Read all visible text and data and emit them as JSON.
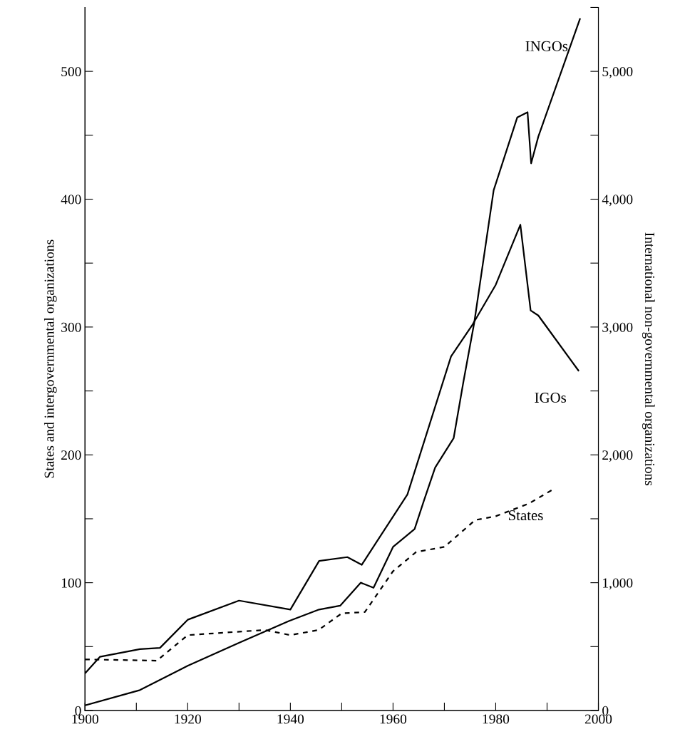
{
  "chart_data": {
    "type": "line",
    "ylabel": "States and intergovernmental organizations",
    "y2label": "International non-governmental organizations",
    "xlim": [
      1900,
      2000
    ],
    "xticks": [
      1900,
      {
        "value": 1910,
        "label": null
      },
      1920,
      {
        "value": 1930,
        "label": null
      },
      1940,
      {
        "value": 1950,
        "label": null
      },
      1960,
      {
        "value": 1970,
        "label": null
      },
      1980,
      {
        "value": 1990,
        "label": null
      },
      2000
    ],
    "ylim": [
      0,
      550
    ],
    "yticks": [
      0,
      {
        "value": 50,
        "label": null
      },
      100,
      {
        "value": 150,
        "label": null
      },
      200,
      {
        "value": 250,
        "label": null
      },
      300,
      {
        "value": 350,
        "label": null
      },
      400,
      {
        "value": 450,
        "label": null
      },
      500
    ],
    "y2lim": [
      0,
      5500
    ],
    "y2ticks": [
      0,
      {
        "value": 500,
        "label": null
      },
      {
        "value": 1000,
        "label": "1,000"
      },
      {
        "value": 1500,
        "label": null
      },
      {
        "value": 2000,
        "label": "2,000"
      },
      {
        "value": 2500,
        "label": null
      },
      {
        "value": 3000,
        "label": "3,000"
      },
      {
        "value": 3500,
        "label": null
      },
      {
        "value": 4000,
        "label": "4,000"
      },
      {
        "value": 4500,
        "label": null
      },
      {
        "value": 5000,
        "label": "5,000"
      },
      {
        "value": 5500,
        "label": null
      }
    ],
    "grid": false,
    "legend": false,
    "series": [
      {
        "name": "INGOs",
        "color": "#000000",
        "axis": "y2",
        "line_style": "solid",
        "x": [
          1900,
          1910.7,
          1920,
          1930,
          1939.7,
          1945.6,
          1949.7,
          1953.7,
          1956.2,
          1960,
          1964.2,
          1966,
          1968.2,
          1971.8,
          1973.7,
          1975.8,
          1979.6,
          1984.2,
          1986.2,
          1986.9,
          1988.3,
          1996.4
        ],
        "values": [
          40,
          160,
          350,
          530,
          700,
          790,
          820,
          1000,
          960,
          1280,
          1420,
          1640,
          1900,
          2130,
          2570,
          3030,
          4070,
          4640,
          4680,
          4280,
          4490,
          5410
        ]
      },
      {
        "name": "IGOs",
        "color": "#000000",
        "line_style": "solid",
        "x": [
          1900,
          1902.9,
          1910.7,
          1914.6,
          1920,
          1930,
          1940,
          1945.6,
          1951.1,
          1953.9,
          1962.8,
          1971.3,
          1975.5,
          1980,
          1984.8,
          1986.8,
          1988.3,
          1996.1
        ],
        "values": [
          29,
          42,
          48,
          49,
          71,
          86,
          79,
          117,
          120,
          114,
          169,
          277,
          302,
          333,
          380,
          313,
          309,
          266
        ]
      },
      {
        "name": "States",
        "color": "#000000",
        "line_style": "dashed",
        "x": [
          1900,
          1914,
          1920,
          1935,
          1940,
          1945.5,
          1950,
          1954.5,
          1960,
          1964.5,
          1970,
          1976,
          1980,
          1986.5,
          1991.6
        ],
        "values": [
          40,
          39,
          59,
          63,
          59,
          63,
          76,
          77,
          109,
          124,
          128,
          149,
          152,
          162,
          174
        ]
      }
    ]
  }
}
